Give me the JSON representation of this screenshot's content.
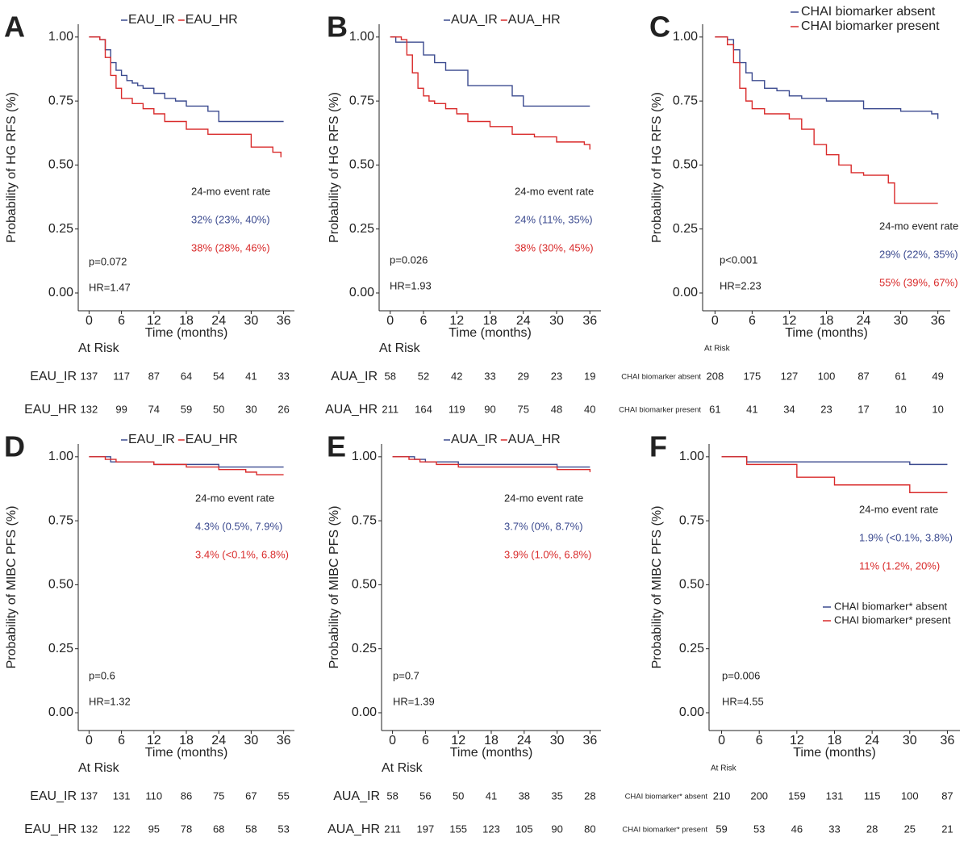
{
  "chart_data": [
    {
      "type": "line",
      "step": true,
      "panel": "A",
      "ylabel": "Probability of HG RFS (%)",
      "xlabel": "Time (months)",
      "xlim": [
        -2,
        38
      ],
      "ylim": [
        -0.06,
        1.05
      ],
      "xticks": [
        0,
        6,
        12,
        18,
        24,
        30,
        36
      ],
      "yticks": [
        {
          "value": 0,
          "label": "0.00"
        },
        0.25,
        {
          "value": 0.5,
          "label": "0.50"
        },
        0.75,
        {
          "value": 1,
          "label": "1.00"
        }
      ],
      "legend": "top",
      "event_rate_title": "24-mo event rate",
      "p_value": "p=0.072",
      "hr": "HR=1.47",
      "at_risk_title": "At Risk",
      "series": [
        {
          "name": "EAU_IR",
          "color": "#3b4a8f",
          "x": [
            0,
            2,
            3,
            4,
            5,
            6,
            7,
            8,
            9,
            10,
            12,
            14,
            16,
            18,
            22,
            24,
            36
          ],
          "values": [
            1,
            0.99,
            0.95,
            0.9,
            0.87,
            0.85,
            0.83,
            0.82,
            0.81,
            0.8,
            0.78,
            0.76,
            0.75,
            0.73,
            0.71,
            0.67,
            0.67
          ],
          "event_rate": "32% (23%, 40%)",
          "at_risk": [
            137,
            117,
            87,
            64,
            54,
            41,
            33
          ]
        },
        {
          "name": "EAU_HR",
          "color": "#d92b2b",
          "x": [
            0,
            2,
            3,
            4,
            5,
            6,
            8,
            10,
            12,
            14,
            18,
            22,
            30,
            34,
            35.5
          ],
          "values": [
            1,
            0.99,
            0.92,
            0.85,
            0.8,
            0.76,
            0.74,
            0.72,
            0.7,
            0.67,
            0.64,
            0.62,
            0.57,
            0.55,
            0.53
          ],
          "event_rate": "38% (28%, 46%)",
          "at_risk": [
            132,
            99,
            74,
            59,
            50,
            30,
            26
          ]
        }
      ]
    },
    {
      "type": "line",
      "step": true,
      "panel": "B",
      "ylabel": "Probability of HG RFS (%)",
      "xlabel": "Time (months)",
      "xlim": [
        -2,
        38
      ],
      "ylim": [
        -0.06,
        1.05
      ],
      "xticks": [
        0,
        6,
        12,
        18,
        24,
        30,
        36
      ],
      "yticks": [
        {
          "value": 0,
          "label": "0.00"
        },
        0.25,
        {
          "value": 0.5,
          "label": "0.50"
        },
        0.75,
        {
          "value": 1,
          "label": "1.00"
        }
      ],
      "legend": "top",
      "event_rate_title": "24-mo event rate",
      "p_value": "p=0.026",
      "hr": "HR=1.93",
      "at_risk_title": "At Risk",
      "series": [
        {
          "name": "AUA_IR",
          "color": "#3b4a8f",
          "x": [
            0,
            1,
            2,
            6,
            8,
            10,
            14,
            22,
            24,
            36
          ],
          "values": [
            1,
            0.98,
            0.98,
            0.93,
            0.9,
            0.87,
            0.81,
            0.77,
            0.73,
            0.73
          ],
          "event_rate": "24% (11%, 35%)",
          "at_risk": [
            58,
            52,
            42,
            33,
            29,
            23,
            19
          ]
        },
        {
          "name": "AUA_HR",
          "color": "#d92b2b",
          "x": [
            0,
            2,
            3,
            4,
            5,
            6,
            7,
            8,
            10,
            12,
            14,
            18,
            22,
            26,
            30,
            35,
            36
          ],
          "values": [
            1,
            0.99,
            0.93,
            0.86,
            0.8,
            0.77,
            0.75,
            0.74,
            0.72,
            0.7,
            0.67,
            0.65,
            0.62,
            0.61,
            0.59,
            0.58,
            0.56
          ],
          "event_rate": "38% (30%, 45%)",
          "at_risk": [
            211,
            164,
            119,
            90,
            75,
            48,
            40
          ]
        }
      ]
    },
    {
      "type": "line",
      "step": true,
      "panel": "C",
      "ylabel": "Probability of HG RFS (%)",
      "xlabel": "Time (months)",
      "xlim": [
        -2,
        38
      ],
      "ylim": [
        -0.06,
        1.05
      ],
      "xticks": [
        0,
        6,
        12,
        18,
        24,
        30,
        36
      ],
      "yticks": [
        {
          "value": 0,
          "label": "0.00"
        },
        0.25,
        {
          "value": 0.5,
          "label": "0.50"
        },
        0.75,
        {
          "value": 1,
          "label": "1.00"
        }
      ],
      "legend": "top-right",
      "event_rate_title": "24-mo event rate",
      "p_value": "p<0.001",
      "hr": "HR=2.23",
      "at_risk_title": "At Risk",
      "series": [
        {
          "name": "CHAI biomarker absent",
          "color": "#3b4a8f",
          "x": [
            0,
            2,
            3,
            4,
            5,
            6,
            8,
            10,
            12,
            14,
            18,
            24,
            30,
            35,
            36
          ],
          "values": [
            1,
            0.99,
            0.95,
            0.9,
            0.86,
            0.83,
            0.8,
            0.79,
            0.77,
            0.76,
            0.75,
            0.72,
            0.71,
            0.7,
            0.68
          ],
          "event_rate": "29% (22%, 35%)",
          "at_risk": [
            208,
            175,
            127,
            100,
            87,
            61,
            49
          ]
        },
        {
          "name": "CHAI biomarker present",
          "color": "#d92b2b",
          "x": [
            0,
            2,
            3,
            4,
            5,
            6,
            8,
            12,
            14,
            16,
            18,
            20,
            22,
            24,
            28,
            29,
            36
          ],
          "values": [
            1,
            0.97,
            0.9,
            0.8,
            0.75,
            0.72,
            0.7,
            0.68,
            0.64,
            0.58,
            0.54,
            0.5,
            0.47,
            0.46,
            0.43,
            0.35,
            0.35
          ],
          "event_rate": "55% (39%, 67%)",
          "at_risk": [
            61,
            41,
            34,
            23,
            17,
            10,
            10
          ]
        }
      ]
    },
    {
      "type": "line",
      "step": true,
      "panel": "D",
      "ylabel": "Probability of MIBC PFS (%)",
      "xlabel": "Time (months)",
      "xlim": [
        -2,
        38
      ],
      "ylim": [
        -0.06,
        1.05
      ],
      "xticks": [
        0,
        6,
        12,
        18,
        24,
        30,
        36
      ],
      "yticks": [
        {
          "value": 0,
          "label": "0.00"
        },
        0.25,
        {
          "value": 0.5,
          "label": "0.50"
        },
        0.75,
        {
          "value": 1,
          "label": "1.00"
        }
      ],
      "legend": "top",
      "event_rate_title": "24-mo event rate",
      "p_value": "p=0.6",
      "hr": "HR=1.32",
      "at_risk_title": "At Risk",
      "series": [
        {
          "name": "EAU_IR",
          "color": "#3b4a8f",
          "x": [
            0,
            4,
            12,
            24,
            36
          ],
          "values": [
            1,
            0.98,
            0.97,
            0.96,
            0.96
          ],
          "event_rate": "4.3% (0.5%, 7.9%)",
          "at_risk": [
            137,
            131,
            110,
            86,
            75,
            67,
            55
          ]
        },
        {
          "name": "EAU_HR",
          "color": "#d92b2b",
          "x": [
            0,
            3,
            5,
            12,
            18,
            24,
            29,
            31,
            36
          ],
          "values": [
            1,
            0.99,
            0.98,
            0.97,
            0.96,
            0.95,
            0.94,
            0.93,
            0.93
          ],
          "event_rate": "3.4% (<0.1%, 6.8%)",
          "at_risk": [
            132,
            122,
            95,
            78,
            68,
            58,
            53
          ]
        }
      ]
    },
    {
      "type": "line",
      "step": true,
      "panel": "E",
      "ylabel": "Probability of MIBC PFS (%)",
      "xlabel": "Time (months)",
      "xlim": [
        -2,
        38
      ],
      "ylim": [
        -0.06,
        1.05
      ],
      "xticks": [
        0,
        6,
        12,
        18,
        24,
        30,
        36
      ],
      "yticks": [
        {
          "value": 0,
          "label": "0.00"
        },
        0.25,
        {
          "value": 0.5,
          "label": "0.50"
        },
        0.75,
        {
          "value": 1,
          "label": "1.00"
        }
      ],
      "legend": "top",
      "event_rate_title": "24-mo event rate",
      "p_value": "p=0.7",
      "hr": "HR=1.39",
      "at_risk_title": "At Risk",
      "series": [
        {
          "name": "AUA_IR",
          "color": "#3b4a8f",
          "x": [
            0,
            4,
            6,
            12,
            30,
            36
          ],
          "values": [
            1,
            0.99,
            0.98,
            0.97,
            0.96,
            0.96
          ],
          "event_rate": "3.7% (0%, 8.7%)",
          "at_risk": [
            58,
            56,
            50,
            41,
            38,
            35,
            28
          ]
        },
        {
          "name": "AUA_HR",
          "color": "#d92b2b",
          "x": [
            0,
            3,
            5,
            8,
            12,
            24,
            30,
            36
          ],
          "values": [
            1,
            0.99,
            0.98,
            0.97,
            0.96,
            0.96,
            0.95,
            0.94
          ],
          "event_rate": "3.9% (1.0%, 6.8%)",
          "at_risk": [
            211,
            197,
            155,
            123,
            105,
            90,
            80
          ]
        }
      ]
    },
    {
      "type": "line",
      "step": true,
      "panel": "F",
      "ylabel": "Probability of MIBC PFS (%)",
      "xlabel": "Time (months)",
      "xlim": [
        -2,
        38
      ],
      "ylim": [
        -0.06,
        1.05
      ],
      "xticks": [
        0,
        6,
        12,
        18,
        24,
        30,
        36
      ],
      "yticks": [
        {
          "value": 0,
          "label": "0.00"
        },
        0.25,
        {
          "value": 0.5,
          "label": "0.50"
        },
        0.75,
        {
          "value": 1,
          "label": "1.00"
        }
      ],
      "legend": "inside",
      "event_rate_title": "24-mo event rate",
      "p_value": "p=0.006",
      "hr": "HR=4.55",
      "at_risk_title": "At Risk",
      "series": [
        {
          "name": "CHAI biomarker* absent",
          "color": "#3b4a8f",
          "x": [
            0,
            4,
            30,
            36
          ],
          "values": [
            1,
            0.98,
            0.97,
            0.97
          ],
          "event_rate": "1.9% (<0.1%, 3.8%)",
          "at_risk": [
            210,
            200,
            159,
            131,
            115,
            100,
            87
          ]
        },
        {
          "name": "CHAI biomarker* present",
          "color": "#d92b2b",
          "x": [
            0,
            4,
            12,
            18,
            30,
            36
          ],
          "values": [
            1,
            0.97,
            0.92,
            0.89,
            0.86,
            0.86
          ],
          "event_rate": "11% (1.2%, 20%)",
          "at_risk": [
            59,
            53,
            46,
            33,
            28,
            25,
            21
          ]
        }
      ]
    }
  ]
}
